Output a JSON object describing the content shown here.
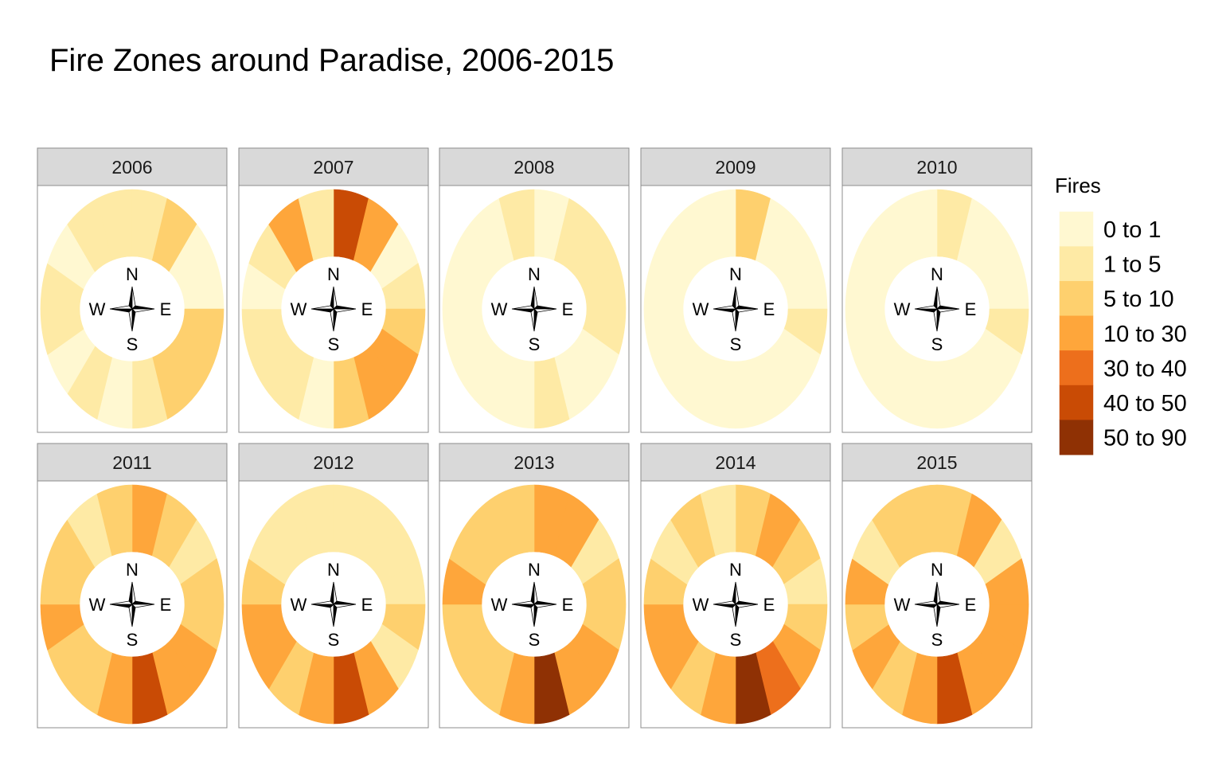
{
  "chart_data": {
    "type": "polar-facet",
    "title": "Fire Zones around Paradise, 2006-2015",
    "compass": {
      "north": "N",
      "south": "S",
      "east": "E",
      "west": "W"
    },
    "sectors_order": "16 sectors clockwise starting at north (NNE, NE, ENE, E, ESE, SE, SSE, S, SSW, SW, WSW, W, WNW, NW, NNW, N)",
    "legend": {
      "title": "Fires",
      "position": "right",
      "bins": [
        {
          "label": "0 to 1",
          "color": "#fff8d1"
        },
        {
          "label": "1 to 5",
          "color": "#feeaa5"
        },
        {
          "label": "5 to 10",
          "color": "#fed06e"
        },
        {
          "label": "10 to 30",
          "color": "#fea63b"
        },
        {
          "label": "30 to 40",
          "color": "#ed6f1c"
        },
        {
          "label": "40 to 50",
          "color": "#c94b05"
        },
        {
          "label": "50 to 90",
          "color": "#8f3104"
        }
      ]
    },
    "panels": [
      {
        "year": "2006",
        "sectors": [
          1,
          2,
          0,
          0,
          2,
          2,
          2,
          1,
          0,
          1,
          0,
          1,
          1,
          0,
          1,
          1
        ]
      },
      {
        "year": "2007",
        "sectors": [
          5,
          3,
          0,
          1,
          2,
          3,
          3,
          2,
          0,
          1,
          1,
          1,
          0,
          1,
          3,
          1
        ]
      },
      {
        "year": "2008",
        "sectors": [
          0,
          1,
          1,
          1,
          1,
          0,
          0,
          1,
          0,
          0,
          0,
          0,
          0,
          0,
          0,
          1
        ]
      },
      {
        "year": "2009",
        "sectors": [
          2,
          0,
          0,
          0,
          1,
          0,
          0,
          0,
          0,
          0,
          0,
          0,
          0,
          0,
          0,
          0
        ]
      },
      {
        "year": "2010",
        "sectors": [
          1,
          0,
          0,
          0,
          1,
          0,
          0,
          0,
          0,
          0,
          0,
          0,
          0,
          0,
          0,
          0
        ]
      },
      {
        "year": "2011",
        "sectors": [
          3,
          2,
          1,
          2,
          2,
          3,
          3,
          5,
          3,
          2,
          2,
          3,
          2,
          2,
          1,
          2
        ]
      },
      {
        "year": "2012",
        "sectors": [
          1,
          1,
          1,
          1,
          2,
          1,
          3,
          5,
          3,
          2,
          3,
          3,
          2,
          1,
          1,
          1
        ]
      },
      {
        "year": "2013",
        "sectors": [
          3,
          3,
          1,
          2,
          2,
          3,
          3,
          6,
          3,
          2,
          2,
          2,
          3,
          2,
          2,
          2
        ]
      },
      {
        "year": "2014",
        "sectors": [
          2,
          3,
          2,
          1,
          2,
          3,
          4,
          6,
          3,
          2,
          3,
          3,
          2,
          1,
          2,
          1
        ]
      },
      {
        "year": "2015",
        "sectors": [
          2,
          3,
          1,
          3,
          3,
          3,
          3,
          5,
          3,
          2,
          3,
          2,
          3,
          1,
          2,
          2
        ]
      }
    ]
  }
}
